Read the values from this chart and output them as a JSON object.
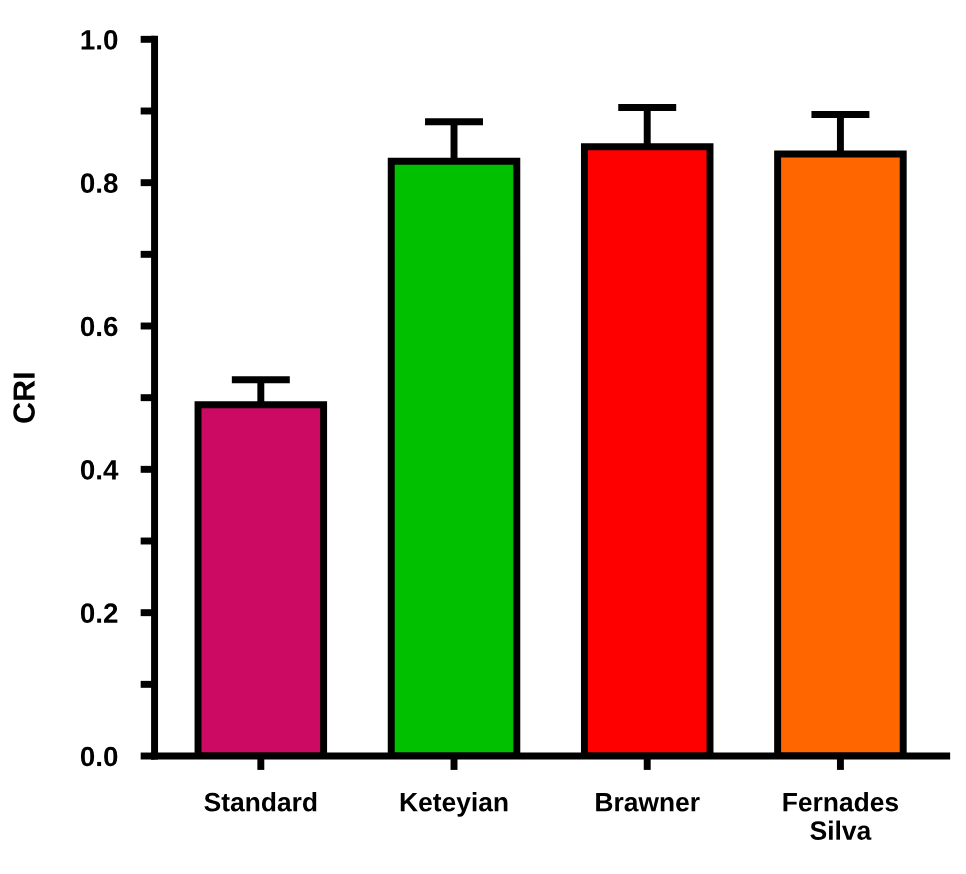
{
  "chart_data": {
    "type": "bar",
    "ylabel": "CRI",
    "categories": [
      "Standard",
      "Keteyian",
      "Brawner",
      "Fernades\nSilva"
    ],
    "values": [
      0.49,
      0.83,
      0.85,
      0.84
    ],
    "colors": [
      "#cc0a63",
      "#00c000",
      "#ff0000",
      "#ff6600"
    ],
    "errors": [
      [
        0.49,
        0.525
      ],
      [
        0.83,
        0.885
      ],
      [
        0.85,
        0.905
      ],
      [
        0.84,
        0.895
      ]
    ],
    "ylim": [
      0,
      1.0
    ],
    "yticks": [
      {
        "value": 0,
        "label": "0.0"
      },
      {
        "value": 0.1,
        "label": null
      },
      {
        "value": 0.2,
        "label": "0.2"
      },
      {
        "value": 0.3,
        "label": null
      },
      {
        "value": 0.4,
        "label": "0.4"
      },
      {
        "value": 0.5,
        "label": null
      },
      {
        "value": 0.6,
        "label": "0.6"
      },
      {
        "value": 0.7,
        "label": null
      },
      {
        "value": 0.8,
        "label": "0.8"
      },
      {
        "value": 0.9,
        "label": null
      },
      {
        "value": 1.0,
        "label": "1.0"
      }
    ],
    "grid": false,
    "legend": false
  }
}
